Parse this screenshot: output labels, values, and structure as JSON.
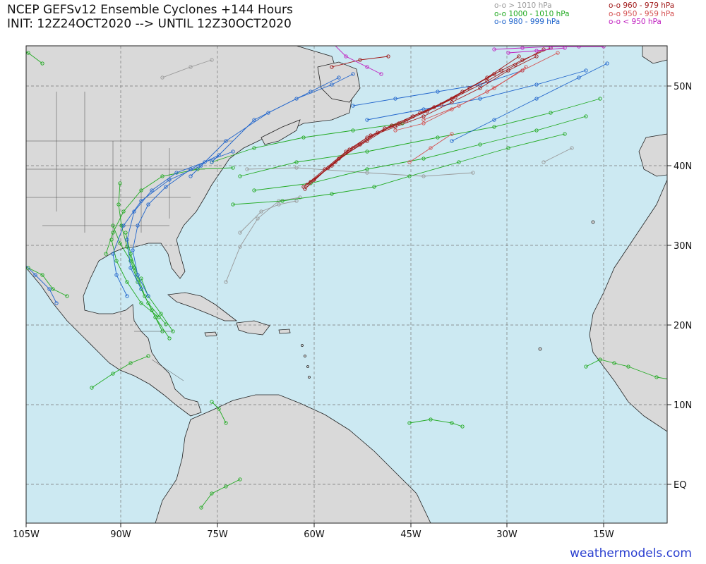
{
  "header": {
    "title_line1": "NCEP GEFSv12 Ensemble Cyclones +144 Hours",
    "title_line2": "INIT: 12Z24OCT2020 --> UNTIL 12Z30OCT2020"
  },
  "legend": {
    "items": [
      {
        "symbol": "o-o",
        "label": "> 1010 hPa",
        "color": "#9a9a9a"
      },
      {
        "symbol": "o-o",
        "label": "1000 - 1010 hPa",
        "color": "#22aa22"
      },
      {
        "symbol": "o-o",
        "label": "980 - 999 hPa",
        "color": "#2266cc"
      },
      {
        "symbol": "o-o",
        "label": "960 - 979 hPa",
        "color": "#a01818"
      },
      {
        "symbol": "o-o",
        "label": "950 - 959 hPa",
        "color": "#d45050"
      },
      {
        "symbol": "o-o",
        "label": "< 950 hPa",
        "color": "#c020c0"
      }
    ]
  },
  "map": {
    "ocean_color": "#cce9f2",
    "land_color": "#d9d9d9",
    "longitude_labels": [
      "105W",
      "90W",
      "75W",
      "60W",
      "45W",
      "30W",
      "15W"
    ],
    "latitude_labels": [
      "50N",
      "40N",
      "30N",
      "20N",
      "10N",
      "EQ"
    ]
  },
  "credit": "weathermodels.com"
}
